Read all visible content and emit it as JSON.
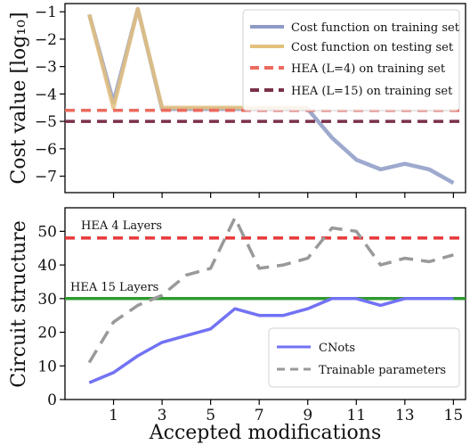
{
  "chart_data": [
    {
      "type": "line",
      "title": "",
      "xlabel": "",
      "ylabel": "Cost value [log₁₀]",
      "xlim": [
        -1,
        15.5
      ],
      "ylim": [
        -7.6,
        -0.7
      ],
      "x_ticks": [
        1,
        3,
        5,
        7,
        9,
        11,
        13,
        15
      ],
      "y_ticks": [
        -1,
        -2,
        -3,
        -4,
        -5,
        -6,
        -7
      ],
      "y_tick_labels": [
        "−1",
        "−2",
        "−3",
        "−4",
        "−5",
        "−6",
        "−7"
      ],
      "x_tick_labels_shown": false,
      "grid": false,
      "legend_position": "top-right",
      "series": [
        {
          "name": "Cost function on training set",
          "color": "#8d9ac6",
          "style": "solid",
          "x": [
            0,
            1,
            2,
            3,
            4,
            5,
            6,
            7,
            8,
            9,
            10,
            11,
            12,
            13,
            14,
            15
          ],
          "values": [
            -1.1,
            -4.3,
            -0.9,
            -4.55,
            -4.55,
            -4.55,
            -4.55,
            -4.55,
            -4.55,
            -4.55,
            -5.6,
            -6.4,
            -6.75,
            -6.55,
            -6.75,
            -7.25
          ]
        },
        {
          "name": "Cost function on testing set",
          "color": "#e3c07d",
          "style": "solid",
          "x": [
            0,
            1,
            2,
            3,
            4,
            5,
            6,
            7,
            8,
            9
          ],
          "values": [
            -1.1,
            -4.5,
            -0.9,
            -4.5,
            -4.5,
            -4.5,
            -4.5,
            -4.5,
            -4.5,
            -4.5
          ]
        },
        {
          "name": "HEA (L=4) on training set",
          "color": "#ec6b5e",
          "style": "dashed",
          "x": [
            -1,
            15.5
          ],
          "values": [
            -4.6,
            -4.6
          ]
        },
        {
          "name": "HEA (L=15) on training set",
          "color": "#7b3147",
          "style": "dashed",
          "x": [
            -1,
            15.5
          ],
          "values": [
            -5.0,
            -5.0
          ]
        }
      ]
    },
    {
      "type": "line",
      "title": "",
      "xlabel": "Accepted modifications",
      "ylabel": "Circuit structure",
      "xlim": [
        -1,
        15.5
      ],
      "ylim": [
        0,
        57
      ],
      "x_ticks": [
        1,
        3,
        5,
        7,
        9,
        11,
        13,
        15
      ],
      "y_ticks": [
        0,
        10,
        20,
        30,
        40,
        50
      ],
      "grid": false,
      "legend_position": "bottom-right",
      "annotations": [
        "HEA 4 Layers",
        "HEA 15 Layers"
      ],
      "series": [
        {
          "name": "",
          "color": "#e8383a",
          "style": "dashed",
          "x": [
            -1,
            15.5
          ],
          "values": [
            48,
            48
          ]
        },
        {
          "name": "",
          "color": "#2f9a2f",
          "style": "solid",
          "x": [
            -1,
            15.5
          ],
          "values": [
            30,
            30
          ]
        },
        {
          "name": "CNots",
          "color": "#7272f4",
          "style": "solid",
          "x": [
            0,
            1,
            2,
            3,
            4,
            5,
            6,
            7,
            8,
            9,
            10,
            11,
            12,
            13,
            14,
            15
          ],
          "values": [
            5,
            8,
            13,
            17,
            19,
            21,
            27,
            25,
            25,
            27,
            30,
            30,
            28,
            30,
            30,
            30
          ]
        },
        {
          "name": "Trainable parameters",
          "color": "#999999",
          "style": "dashed",
          "x": [
            0,
            1,
            2,
            3,
            4,
            5,
            6,
            7,
            8,
            9,
            10,
            11,
            12,
            13,
            14,
            15
          ],
          "values": [
            11,
            23,
            28,
            31,
            37,
            39,
            54,
            39,
            40,
            42,
            51,
            50,
            40,
            42,
            41,
            43
          ]
        }
      ]
    }
  ]
}
